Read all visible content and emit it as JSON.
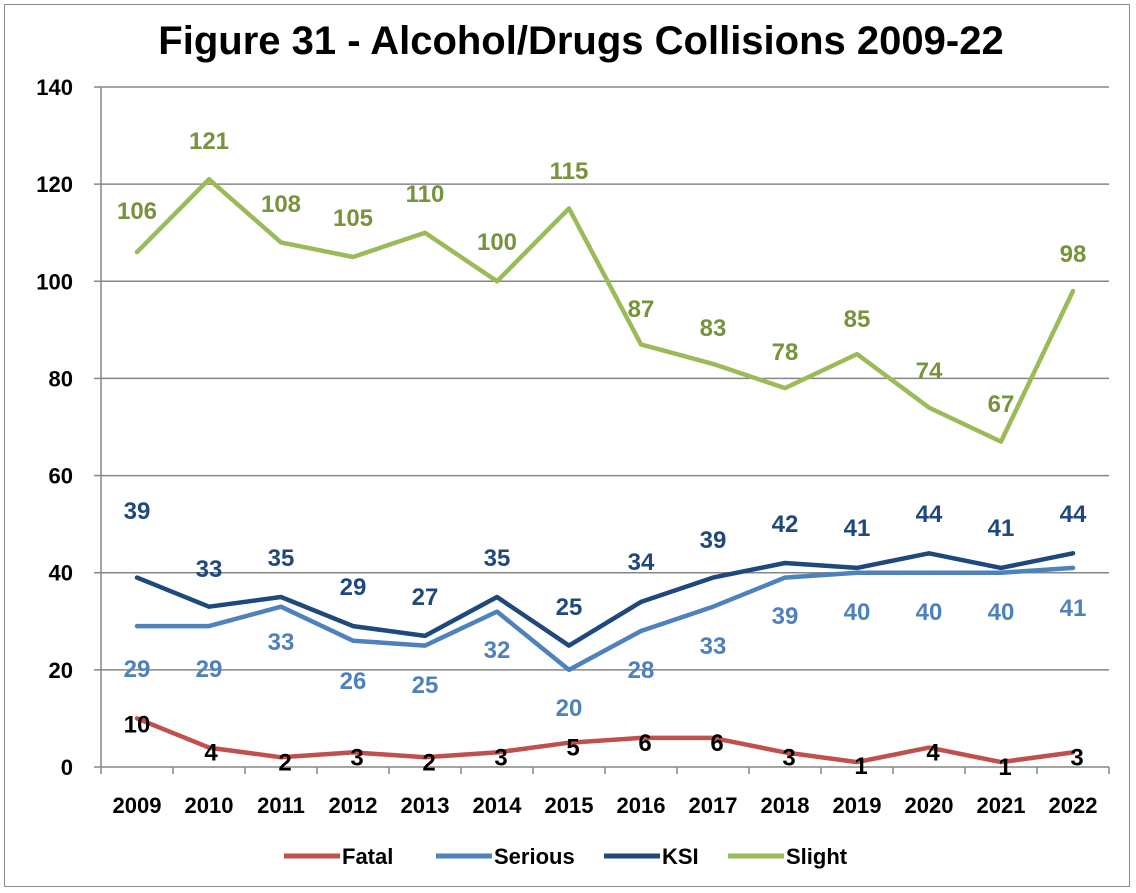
{
  "chart_data": {
    "type": "line",
    "title": "Figure 31 - Alcohol/Drugs Collisions 2009-22",
    "xlabel": "",
    "ylabel": "",
    "categories": [
      "2009",
      "2010",
      "2011",
      "2012",
      "2013",
      "2014",
      "2015",
      "2016",
      "2017",
      "2018",
      "2019",
      "2020",
      "2021",
      "2022"
    ],
    "ylim": [
      0,
      140
    ],
    "yticks": [
      "0",
      "20",
      "40",
      "60",
      "80",
      "100",
      "120",
      "140"
    ],
    "grid": true,
    "legend_position": "bottom",
    "series": [
      {
        "name": "Fatal",
        "color": "#c0504d",
        "label_color": "#000000",
        "values": [
          10,
          4,
          2,
          3,
          2,
          3,
          5,
          6,
          6,
          3,
          1,
          4,
          1,
          3
        ]
      },
      {
        "name": "Serious",
        "color": "#4f81bd",
        "label_color": "#4f81bd",
        "values": [
          29,
          29,
          33,
          26,
          25,
          32,
          20,
          28,
          33,
          39,
          40,
          40,
          40,
          41
        ]
      },
      {
        "name": "KSI",
        "color": "#1f497d",
        "label_color": "#1f497d",
        "values": [
          39,
          33,
          35,
          29,
          27,
          35,
          25,
          34,
          39,
          42,
          41,
          44,
          41,
          44
        ]
      },
      {
        "name": "Slight",
        "color": "#9bbb59",
        "label_color": "#77933c",
        "values": [
          106,
          121,
          108,
          105,
          110,
          100,
          115,
          87,
          83,
          78,
          85,
          74,
          67,
          98
        ]
      }
    ]
  }
}
